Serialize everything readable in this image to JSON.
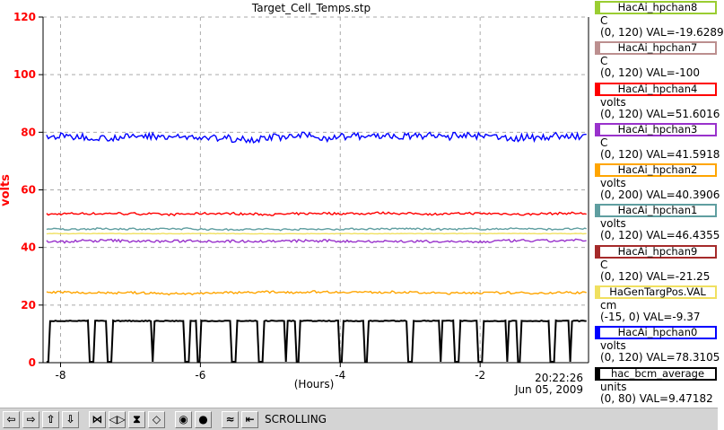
{
  "chart_data": {
    "type": "line",
    "title": "Target_Cell_Temps.stp",
    "xlabel": "(Hours)",
    "ylabel": "volts",
    "xlim": [
      -8.25,
      -0.45
    ],
    "ylim": [
      0,
      120
    ],
    "x_ticks": [
      -8,
      -6,
      -4,
      -2
    ],
    "y_ticks": [
      0,
      20,
      40,
      60,
      80,
      100,
      120
    ],
    "grid": true,
    "timestamp": {
      "time": "20:22:26",
      "date": "Jun 05, 2009"
    },
    "series": [
      {
        "name": "HacAi_hpchan4",
        "color": "#ff0000",
        "base": 51.6,
        "noise": 0.5
      },
      {
        "name": "HacAi_hpchan1",
        "color": "#5f9ea0",
        "base": 46.4,
        "noise": 0.4
      },
      {
        "name": "HaGenTargPos.VAL",
        "color": "#f0e060",
        "base": 44.8,
        "noise": 0.1
      },
      {
        "name": "HacAi_hpchan3",
        "color": "#9932cc",
        "base": 42.2,
        "noise": 0.6
      },
      {
        "name": "HacAi_hpchan2",
        "color": "#ffa500",
        "base": 24.3,
        "noise": 0.5
      },
      {
        "name": "HacAi_hpchan0",
        "color": "#0000ff",
        "base": 78.3,
        "noise": 1.6
      },
      {
        "name": "hac_bcm_average",
        "color": "#000000",
        "base": 14.5,
        "noise": 0.3
      }
    ]
  },
  "legend": [
    {
      "name": "HacAi_hpchan8",
      "unit": "C",
      "value": "(0, 120) VAL=-19.6289",
      "color": "#9acd32"
    },
    {
      "name": "HacAi_hpchan7",
      "unit": "C",
      "value": "(0, 120) VAL=-100",
      "color": "#bc8f8f"
    },
    {
      "name": "HacAi_hpchan4",
      "unit": "volts",
      "value": "(0, 120) VAL=51.6016",
      "color": "#ff0000"
    },
    {
      "name": "HacAi_hpchan3",
      "unit": "C",
      "value": "(0, 120) VAL=41.5918",
      "color": "#9932cc"
    },
    {
      "name": "HacAi_hpchan2",
      "unit": "volts",
      "value": "(0, 200) VAL=40.3906",
      "color": "#ffa500"
    },
    {
      "name": "HacAi_hpchan1",
      "unit": "volts",
      "value": "(0, 120) VAL=46.4355",
      "color": "#5f9ea0"
    },
    {
      "name": "HacAi_hpchan9",
      "unit": "C",
      "value": "(0, 120) VAL=-21.25",
      "color": "#a52a2a"
    },
    {
      "name": "HaGenTargPos.VAL",
      "unit": "cm",
      "value": "(-15, 0) VAL=-9.37",
      "color": "#f0e060"
    },
    {
      "name": "HacAi_hpchan0",
      "unit": "volts",
      "value": "(0, 120) VAL=78.3105",
      "color": "#0000ff"
    },
    {
      "name": "hac_bcm_average",
      "unit": "units",
      "value": "(0, 80) VAL=9.47182",
      "color": "#000000"
    }
  ],
  "toolbar": {
    "buttons": [
      {
        "id": "scroll-left",
        "glyph": "⇦",
        "icon": "arrow-left-icon"
      },
      {
        "id": "scroll-right",
        "glyph": "⇨",
        "icon": "arrow-right-icon"
      },
      {
        "id": "scroll-up",
        "glyph": "⇧",
        "icon": "arrow-up-icon"
      },
      {
        "id": "scroll-down",
        "glyph": "⇩",
        "icon": "arrow-down-icon"
      },
      {
        "id": "zoom-x-in",
        "glyph": "⋈",
        "icon": "zoom-x-in-icon"
      },
      {
        "id": "zoom-x-out",
        "glyph": "◁▷",
        "icon": "zoom-x-out-icon"
      },
      {
        "id": "zoom-y-in",
        "glyph": "⧗",
        "icon": "zoom-y-in-icon"
      },
      {
        "id": "zoom-y-out",
        "glyph": "◇",
        "icon": "zoom-y-out-icon"
      },
      {
        "id": "config",
        "glyph": "◉",
        "icon": "gear-icon"
      },
      {
        "id": "stop",
        "glyph": "●",
        "icon": "stop-icon"
      },
      {
        "id": "autoscale",
        "glyph": "≈",
        "icon": "autoscale-icon"
      },
      {
        "id": "back-to-now",
        "glyph": "⇤",
        "icon": "back-to-now-icon"
      }
    ],
    "status": "SCROLLING"
  }
}
